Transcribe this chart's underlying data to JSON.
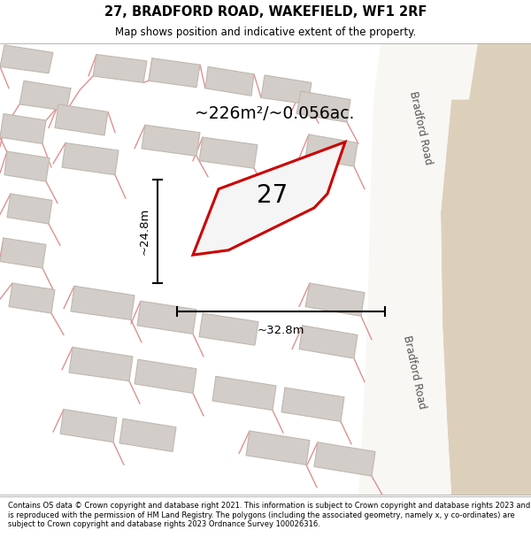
{
  "title_line1": "27, BRADFORD ROAD, WAKEFIELD, WF1 2RF",
  "title_line2": "Map shows position and indicative extent of the property.",
  "footer_text": "Contains OS data © Crown copyright and database right 2021. This information is subject to Crown copyright and database rights 2023 and is reproduced with the permission of HM Land Registry. The polygons (including the associated geometry, namely x, y co-ordinates) are subject to Crown copyright and database rights 2023 Ordnance Survey 100026316.",
  "area_label": "~226m²/~0.056ac.",
  "house_number": "27",
  "width_label": "~32.8m",
  "height_label": "~24.8m",
  "map_bg": "#edeae5",
  "building_fill": "#d2cdc8",
  "building_stroke": "#c0b8b0",
  "pink_color": "#e09090",
  "red_color": "#cc0000",
  "road_label": "Bradford Road",
  "road_fill": "#f0eeea",
  "sand_fill": "#ddd0bb",
  "white_road": "#f8f7f4"
}
